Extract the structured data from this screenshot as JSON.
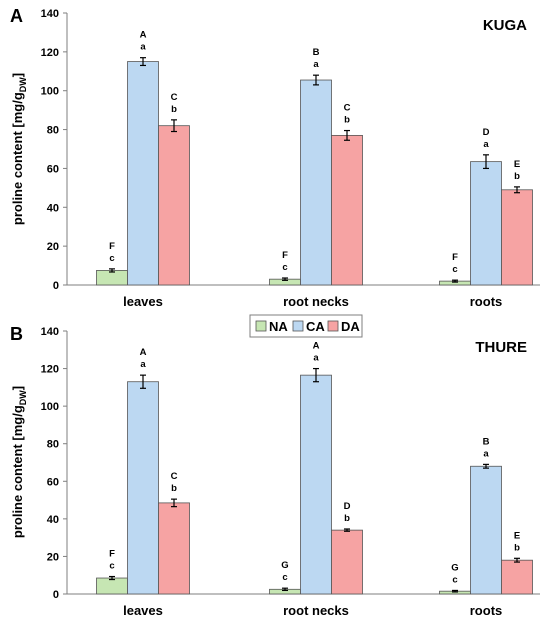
{
  "colors": {
    "NA": "#c6e6b3",
    "CA": "#bcd8f2",
    "DA": "#f6a3a3",
    "bar_stroke": "#555555"
  },
  "legend": [
    {
      "key": "NA",
      "label": "NA"
    },
    {
      "key": "CA",
      "label": "CA"
    },
    {
      "key": "DA",
      "label": "DA"
    }
  ],
  "ylabel_main": "proline content [mg/g",
  "ylabel_sub": "DW",
  "ylabel_end": "]",
  "chart_data": [
    {
      "panel": "A",
      "title": "KUGA",
      "type": "bar",
      "categories": [
        "leaves",
        "root necks",
        "roots"
      ],
      "ylim": [
        0,
        140
      ],
      "yticks": [
        0,
        20,
        40,
        60,
        80,
        100,
        120,
        140
      ],
      "series": [
        {
          "name": "NA",
          "values": [
            7.5,
            3.0,
            2.0
          ],
          "errors": [
            0.8,
            0.6,
            0.5
          ],
          "labels_upper": [
            "F",
            "F",
            "F"
          ],
          "labels_lower": [
            "c",
            "c",
            "c"
          ]
        },
        {
          "name": "CA",
          "values": [
            115,
            105.5,
            63.5
          ],
          "errors": [
            2.0,
            2.5,
            3.5
          ],
          "labels_upper": [
            "A",
            "B",
            "D"
          ],
          "labels_lower": [
            "a",
            "a",
            "a"
          ]
        },
        {
          "name": "DA",
          "values": [
            82,
            77,
            49
          ],
          "errors": [
            3.0,
            2.5,
            1.5
          ],
          "labels_upper": [
            "C",
            "C",
            "E"
          ],
          "labels_lower": [
            "b",
            "b",
            "b"
          ]
        }
      ]
    },
    {
      "panel": "B",
      "title": "THURE",
      "type": "bar",
      "categories": [
        "leaves",
        "root necks",
        "roots"
      ],
      "ylim": [
        0,
        140
      ],
      "yticks": [
        0,
        20,
        40,
        60,
        80,
        100,
        120,
        140
      ],
      "series": [
        {
          "name": "NA",
          "values": [
            8.5,
            2.5,
            1.5
          ],
          "errors": [
            0.8,
            0.6,
            0.4
          ],
          "labels_upper": [
            "F",
            "G",
            "G"
          ],
          "labels_lower": [
            "c",
            "c",
            "c"
          ]
        },
        {
          "name": "CA",
          "values": [
            113,
            116.5,
            68
          ],
          "errors": [
            3.5,
            3.5,
            1.0
          ],
          "labels_upper": [
            "A",
            "A",
            "B"
          ],
          "labels_lower": [
            "a",
            "a",
            "a"
          ]
        },
        {
          "name": "DA",
          "values": [
            48.5,
            34,
            18
          ],
          "errors": [
            2.0,
            0.6,
            1.0
          ],
          "labels_upper": [
            "C",
            "D",
            "E"
          ],
          "labels_lower": [
            "b",
            "b",
            "b"
          ]
        }
      ]
    }
  ]
}
